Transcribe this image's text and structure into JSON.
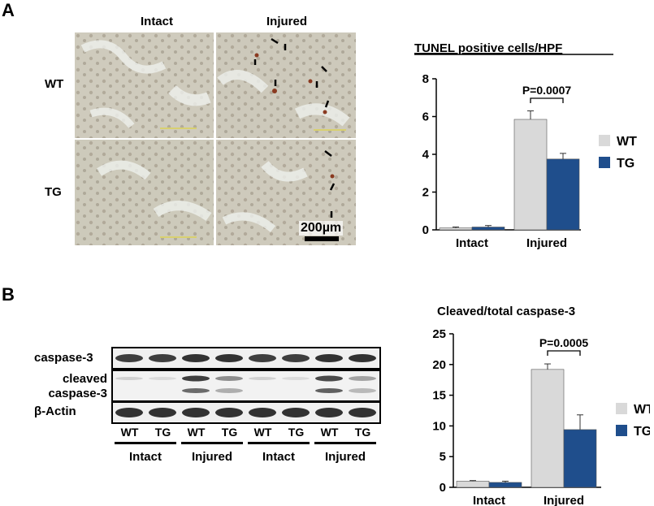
{
  "panel_a": {
    "letter": "A",
    "col_headers": [
      "Intact",
      "Injured"
    ],
    "row_headers": [
      "WT",
      "TG"
    ],
    "scale_bar": "200µm"
  },
  "panel_b": {
    "letter": "B",
    "blot_rows": [
      "caspase-3",
      "cleaved\ncaspase-3",
      "β-Actin"
    ],
    "lanes": [
      "WT",
      "TG",
      "WT",
      "TG",
      "WT",
      "TG",
      "WT",
      "TG"
    ],
    "groups": [
      "Intact",
      "Injured",
      "Intact",
      "Injured"
    ]
  },
  "colors": {
    "wt": "#d9d9d9",
    "tg": "#1f4e8c"
  },
  "chart_data": [
    {
      "type": "bar",
      "title": "TUNEL positive cells/HPF",
      "categories": [
        "Intact",
        "Injured"
      ],
      "series": [
        {
          "name": "WT",
          "values": [
            0.1,
            5.85
          ],
          "errors": [
            0.05,
            0.45
          ]
        },
        {
          "name": "TG",
          "values": [
            0.15,
            3.75
          ],
          "errors": [
            0.08,
            0.3
          ]
        }
      ],
      "ylim": [
        0,
        8
      ],
      "yticks": [
        0,
        2,
        4,
        6,
        8
      ],
      "annotation": "P=0.0007",
      "legend": "right"
    },
    {
      "type": "bar",
      "title": "Cleaved/total caspase-3",
      "categories": [
        "Intact",
        "Injured"
      ],
      "series": [
        {
          "name": "WT",
          "values": [
            1.0,
            19.2
          ],
          "errors": [
            0.1,
            0.9
          ]
        },
        {
          "name": "TG",
          "values": [
            0.8,
            9.4
          ],
          "errors": [
            0.2,
            2.4
          ]
        }
      ],
      "ylim": [
        0,
        25
      ],
      "yticks": [
        0,
        5,
        10,
        15,
        20,
        25
      ],
      "annotation": "P=0.0005",
      "legend": "right"
    }
  ]
}
